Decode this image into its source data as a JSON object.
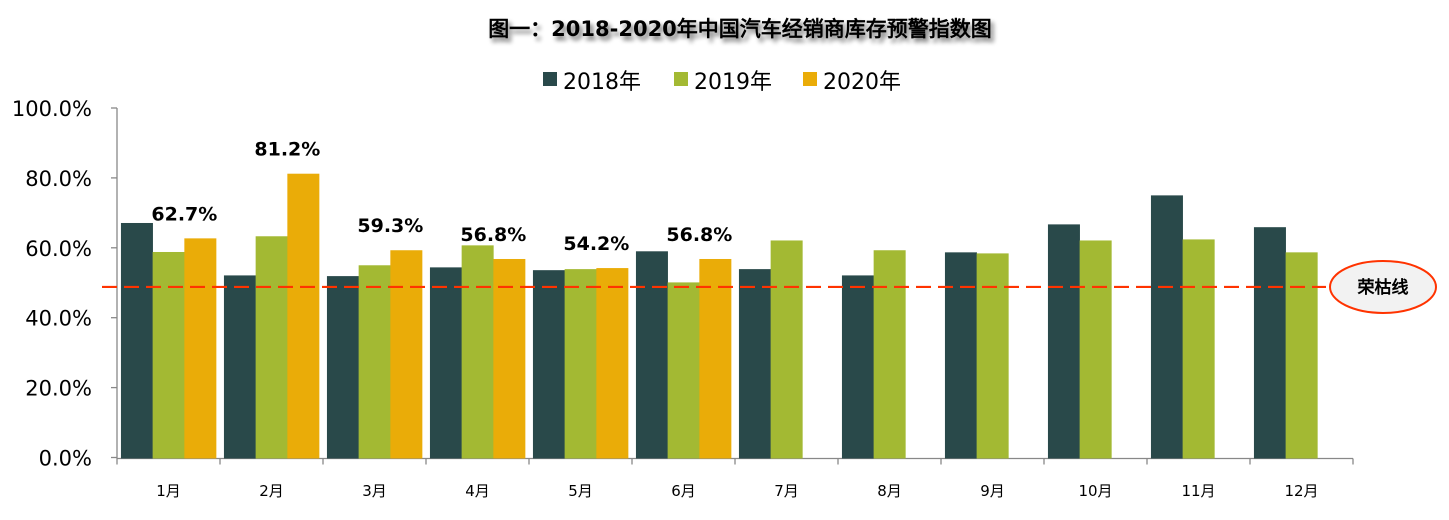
{
  "chart_data": {
    "type": "bar",
    "title": "图一：2018-2020年中国汽车经销商库存预警指数图",
    "xlabel": "",
    "ylabel": "",
    "ylim": [
      0,
      100
    ],
    "yticks": [
      "0.0%",
      "20.0%",
      "40.0%",
      "60.0%",
      "80.0%",
      "100.0%"
    ],
    "grid": false,
    "legend_position": "top",
    "categories": [
      "1月",
      "2月",
      "3月",
      "4月",
      "5月",
      "6月",
      "7月",
      "8月",
      "9月",
      "10月",
      "11月",
      "12月"
    ],
    "series": [
      {
        "name": "2018年",
        "color": "#29494a",
        "values": [
          67.1,
          52.1,
          51.9,
          54.4,
          53.6,
          59.0,
          53.9,
          52.1,
          58.7,
          66.7,
          75.0,
          65.9
        ]
      },
      {
        "name": "2019年",
        "color": "#a3b933",
        "values": [
          58.8,
          63.3,
          55.0,
          60.7,
          53.9,
          50.1,
          62.1,
          59.3,
          58.4,
          62.1,
          62.4,
          58.7
        ]
      },
      {
        "name": "2020年",
        "color": "#eaac08",
        "values": [
          62.7,
          81.2,
          59.3,
          56.8,
          54.2,
          56.8,
          null,
          null,
          null,
          null,
          null,
          null
        ]
      }
    ],
    "data_labels": {
      "series": "2020年",
      "labels": [
        "62.7%",
        "81.2%",
        "59.3%",
        "56.8%",
        "54.2%",
        "56.8%"
      ]
    },
    "reference_line": {
      "label": "荣枯线",
      "value": 48.8,
      "color": "#ff3300",
      "style": "dashed"
    }
  }
}
